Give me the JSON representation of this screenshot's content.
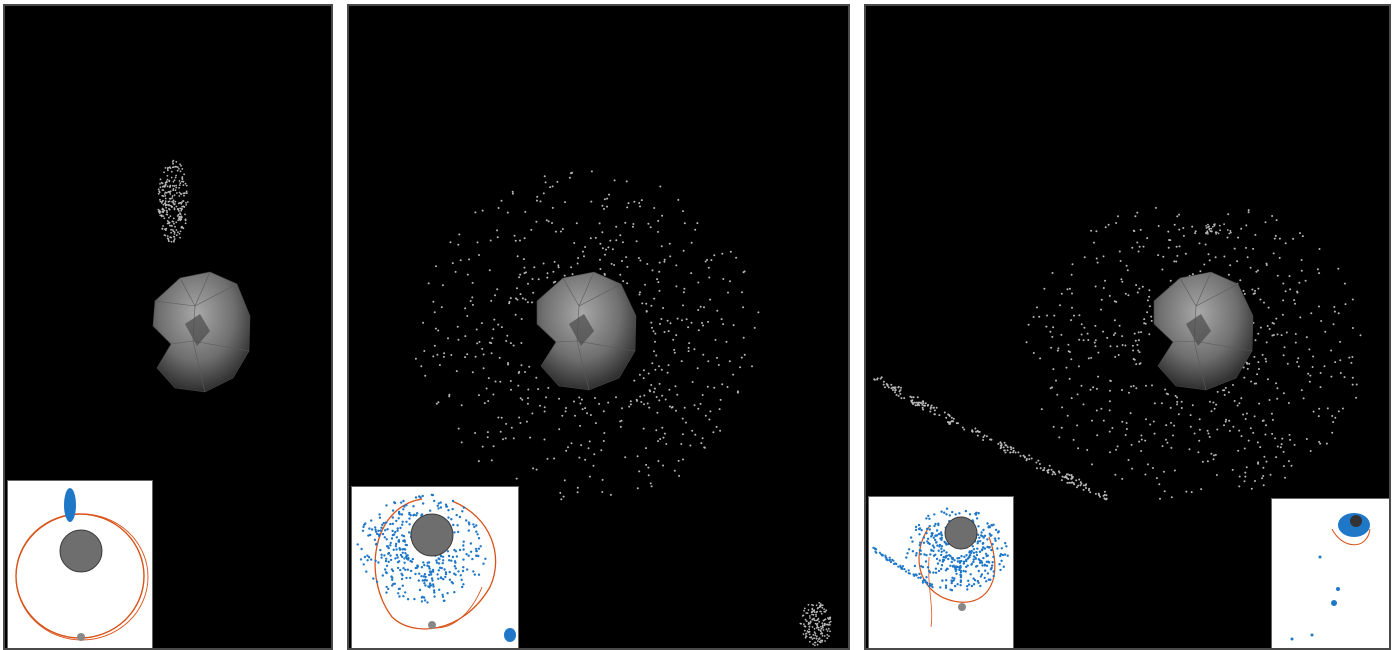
{
  "figure": {
    "background": "#000000",
    "asteroid_color": "#8a8a8a",
    "debris_color": "#b8b8b8",
    "inset_particle_color": "#1f77c8",
    "inset_orbit_color": "#d95319",
    "inset_body_color": "#6e6e6e",
    "panels": [
      {
        "id": "panel-1",
        "description_icon": "asteroid-icon"
      },
      {
        "id": "panel-2",
        "description_icon": "asteroid-icon"
      },
      {
        "id": "panel-3",
        "description_icon": "asteroid-icon"
      }
    ]
  }
}
